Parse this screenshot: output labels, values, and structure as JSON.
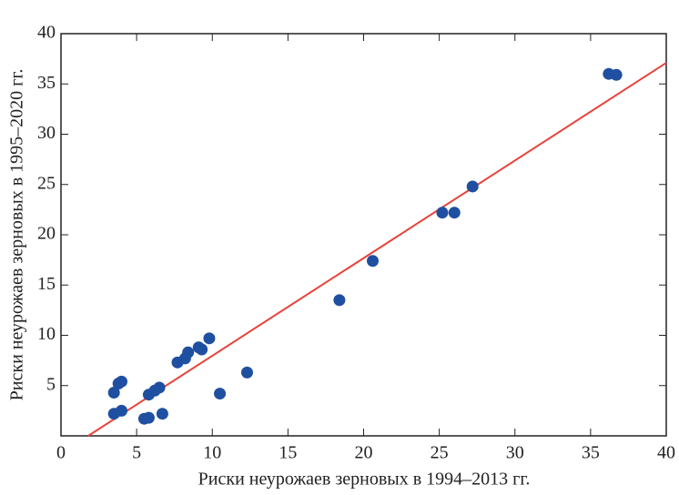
{
  "chart_data": {
    "type": "scatter",
    "xlabel": "Риски неурожаев зерновых в 1994–2013 гг.",
    "ylabel": "Риски неурожаев зерновых в 1995–2020 гг.",
    "xlim": [
      0,
      40
    ],
    "ylim": [
      0,
      40
    ],
    "xticks": [
      0,
      5,
      10,
      15,
      20,
      25,
      30,
      35,
      40
    ],
    "yticks": [
      5,
      10,
      15,
      20,
      25,
      30,
      35,
      40
    ],
    "points": {
      "color": "#1f4fa0",
      "x": [
        3.5,
        3.8,
        4.0,
        3.5,
        4.0,
        5.5,
        5.8,
        5.8,
        6.2,
        6.5,
        6.7,
        7.7,
        8.2,
        8.4,
        9.1,
        9.3,
        9.8,
        10.5,
        12.3,
        18.4,
        20.6,
        25.2,
        26.0,
        27.2,
        36.2,
        36.7
      ],
      "y": [
        4.3,
        5.2,
        5.4,
        2.2,
        2.5,
        1.7,
        1.8,
        4.1,
        4.5,
        4.8,
        2.2,
        7.3,
        7.7,
        8.3,
        8.8,
        8.6,
        9.7,
        4.2,
        6.3,
        13.5,
        17.4,
        22.2,
        22.2,
        24.8,
        36.0,
        35.9
      ]
    },
    "fit": {
      "color": "#e8433a",
      "x": [
        1.8,
        40
      ],
      "y": [
        0,
        37.1
      ]
    }
  }
}
